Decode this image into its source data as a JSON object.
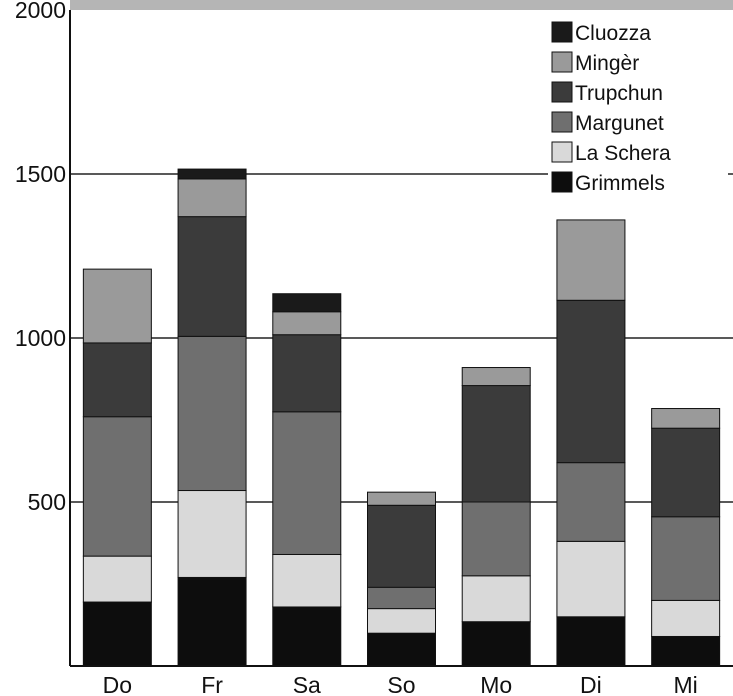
{
  "chart_data": {
    "type": "bar",
    "stacked": true,
    "categories": [
      "Do",
      "Fr",
      "Sa",
      "So",
      "Mo",
      "Di",
      "Mi"
    ],
    "ylim": [
      0,
      2000
    ],
    "yticks": [
      500,
      1000,
      1500,
      2000
    ],
    "grid": true,
    "legend_position": "top-right",
    "series": [
      {
        "name": "Grimmels",
        "color": "#0d0d0d",
        "values": [
          195,
          270,
          180,
          100,
          135,
          150,
          90
        ]
      },
      {
        "name": "La Schera",
        "color": "#d9d9d9",
        "values": [
          140,
          265,
          160,
          75,
          140,
          230,
          110
        ]
      },
      {
        "name": "Margunet",
        "color": "#6f6f6f",
        "values": [
          425,
          470,
          435,
          65,
          225,
          240,
          255
        ]
      },
      {
        "name": "Trupchun",
        "color": "#3b3b3b",
        "values": [
          225,
          365,
          235,
          250,
          355,
          495,
          270
        ]
      },
      {
        "name": "Mingèr",
        "color": "#9a9a9a",
        "values": [
          225,
          115,
          70,
          40,
          55,
          245,
          60
        ]
      },
      {
        "name": "Cluozza",
        "color": "#1a1a1a",
        "values": [
          0,
          30,
          55,
          0,
          0,
          0,
          0
        ]
      }
    ]
  }
}
